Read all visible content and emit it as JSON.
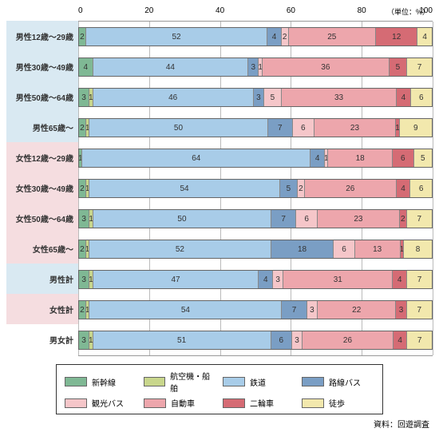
{
  "chart": {
    "type": "stacked-bar-horizontal",
    "unit_label": "（単位：%）",
    "source_label": "資料：回遊調査",
    "xaxis": {
      "min": 0,
      "max": 100,
      "ticks": [
        0,
        20,
        40,
        60,
        80,
        100
      ]
    },
    "series": [
      {
        "key": "shinkansen",
        "label": "新幹線",
        "color": "#7fb894"
      },
      {
        "key": "air_ship",
        "label": "航空機・船舶",
        "color": "#c8d68c"
      },
      {
        "key": "rail",
        "label": "鉄道",
        "color": "#a8cce8"
      },
      {
        "key": "bus_route",
        "label": "路線バス",
        "color": "#7a9ec4"
      },
      {
        "key": "bus_tour",
        "label": "観光バス",
        "color": "#f5c6c9"
      },
      {
        "key": "car",
        "label": "自動車",
        "color": "#eda6ac"
      },
      {
        "key": "motorcycle",
        "label": "二輪車",
        "color": "#d56b74"
      },
      {
        "key": "walk",
        "label": "徒歩",
        "color": "#f2e8ad"
      }
    ],
    "row_label_bg": {
      "male": "#d9e9f2",
      "female": "#f5dde0",
      "total": "#ffffff"
    },
    "rows": [
      {
        "label": "男性12歳～29歳",
        "group": "male",
        "values": {
          "shinkansen": 2,
          "air_ship": 0,
          "rail": 52,
          "bus_route": 4,
          "bus_tour": 2,
          "car": 25,
          "motorcycle": 12,
          "walk": 4
        }
      },
      {
        "label": "男性30歳～49歳",
        "group": "male",
        "values": {
          "shinkansen": 4,
          "air_ship": 0,
          "rail": 44,
          "bus_route": 3,
          "bus_tour": 1,
          "car": 36,
          "motorcycle": 5,
          "walk": 7
        }
      },
      {
        "label": "男性50歳～64歳",
        "group": "male",
        "values": {
          "shinkansen": 3,
          "air_ship": 1,
          "rail": 46,
          "bus_route": 3,
          "bus_tour": 5,
          "car": 33,
          "motorcycle": 4,
          "walk": 6
        }
      },
      {
        "label": "男性65歳～",
        "group": "male",
        "values": {
          "shinkansen": 2,
          "air_ship": 1,
          "rail": 50,
          "bus_route": 7,
          "bus_tour": 6,
          "car": 23,
          "motorcycle": 1,
          "walk": 9
        }
      },
      {
        "label": "女性12歳～29歳",
        "group": "female",
        "values": {
          "shinkansen": 1,
          "air_ship": 0,
          "rail": 64,
          "bus_route": 4,
          "bus_tour": 1,
          "car": 18,
          "motorcycle": 6,
          "walk": 5
        }
      },
      {
        "label": "女性30歳～49歳",
        "group": "female",
        "values": {
          "shinkansen": 2,
          "air_ship": 1,
          "rail": 54,
          "bus_route": 5,
          "bus_tour": 2,
          "car": 26,
          "motorcycle": 4,
          "walk": 6
        }
      },
      {
        "label": "女性50歳～64歳",
        "group": "female",
        "values": {
          "shinkansen": 3,
          "air_ship": 1,
          "rail": 50,
          "bus_route": 7,
          "bus_tour": 6,
          "car": 23,
          "motorcycle": 2,
          "walk": 7
        }
      },
      {
        "label": "女性65歳～",
        "group": "female",
        "values": {
          "shinkansen": 2,
          "air_ship": 1,
          "rail": 52,
          "bus_route": 18,
          "bus_tour": 6,
          "car": 13,
          "motorcycle": 1,
          "walk": 8
        }
      },
      {
        "label": "男性計",
        "group": "male",
        "values": {
          "shinkansen": 3,
          "air_ship": 1,
          "rail": 47,
          "bus_route": 4,
          "bus_tour": 3,
          "car": 31,
          "motorcycle": 4,
          "walk": 7
        }
      },
      {
        "label": "女性計",
        "group": "female",
        "values": {
          "shinkansen": 2,
          "air_ship": 1,
          "rail": 54,
          "bus_route": 7,
          "bus_tour": 3,
          "car": 22,
          "motorcycle": 3,
          "walk": 7
        }
      },
      {
        "label": "男女計",
        "group": "total",
        "values": {
          "shinkansen": 3,
          "air_ship": 1,
          "rail": 51,
          "bus_route": 6,
          "bus_tour": 3,
          "car": 26,
          "motorcycle": 4,
          "walk": 7
        }
      }
    ]
  }
}
